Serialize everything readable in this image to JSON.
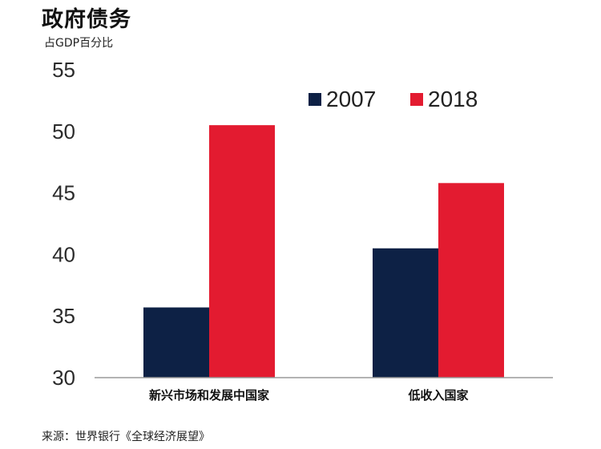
{
  "title": "政府债务",
  "subtitle": "占GDP百分比",
  "source": "来源：世界银行《全球经济展望》",
  "chart_data": {
    "type": "bar",
    "categories": [
      "新兴市场和发展中国家",
      "低收入国家"
    ],
    "series": [
      {
        "name": "2007",
        "color": "#0d2145",
        "values": [
          35.7,
          40.5
        ]
      },
      {
        "name": "2018",
        "color": "#e31b30",
        "values": [
          50.5,
          45.8
        ]
      }
    ],
    "ylim": [
      30,
      55
    ],
    "yticks": [
      30,
      35,
      40,
      45,
      50,
      55
    ],
    "legend_position": "top-right",
    "grid": false
  }
}
